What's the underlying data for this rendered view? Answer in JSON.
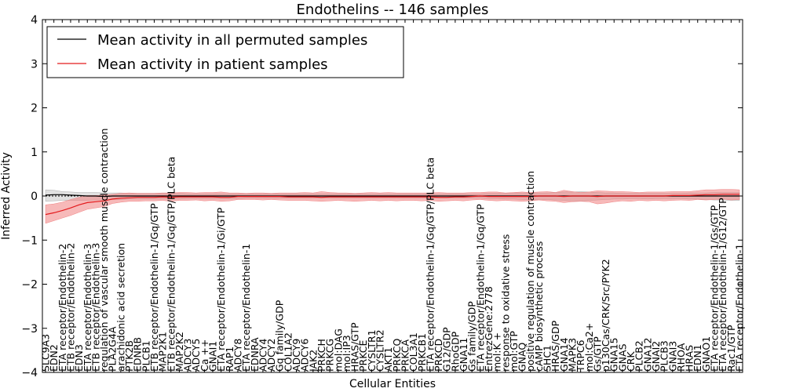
{
  "chart_data": {
    "type": "line",
    "title": "Endothelins -- 146 samples",
    "xlabel": "Cellular Entities",
    "ylabel": "Inferred Activity",
    "ylim": [
      -4,
      4
    ],
    "yticks": [
      -4,
      -3,
      -2,
      -1,
      0,
      1,
      2,
      3,
      4
    ],
    "grid": false,
    "legend_position": "top-left",
    "colors": {
      "permuted_line": "#000000",
      "permuted_band": "#c8c8c8",
      "patient_line": "#e31a1c",
      "patient_band": "#f08080",
      "zero_line": "#000000"
    },
    "categories": [
      "SLC9A3",
      "EDN2",
      "ETA receptor/Endothelin-2",
      "ETB receptor/Endothelin-2",
      "EDN3",
      "ETA receptor/Endothelin-3",
      "ETB receptor/Endothelin-3",
      "regulation of vascular smooth muscle contraction",
      "PLA2G4A",
      "arachidonic acid secretion",
      "PTK2B",
      "EDNRB",
      "PLCB1",
      "ETB receptor/Endothelin-1/Gq/GTP",
      "MAP2K1",
      "ETB receptor/Endothelin-1/Gq/GTP/PLC beta",
      "MAP2K2",
      "ADCY3",
      "ADCY5",
      "Ca ++",
      "GNAI1",
      "ETA receptor/Endothelin-1/Gi/GTP",
      "RAP1",
      "ADCY8",
      "ETA receptor/Endothelin-1",
      "EDNRA",
      "ADCY4",
      "ADCY2",
      "Gq family/GDP",
      "COL1A2",
      "ADCY9",
      "ADCY6",
      "JAK2",
      "PRKCH",
      "PRKCG",
      "mol:DAG",
      "mol:IP3",
      "HRAS/GTP",
      "PRKCE",
      "CYSLTR1",
      "CYSLTR2",
      "AKT1",
      "PRKCQ",
      "PRKCA",
      "COL3A1",
      "PRKCB1",
      "ETA receptor/Endothelin-1/Gq/GTP/PLC beta",
      "PRKCD",
      "G12/GDP",
      "RhoGDP",
      "GNA11",
      "Gs family/GDP",
      "ETA receptor/Endothelin-1/Gq/GTP",
      "EntrezGene:2778",
      "mol:K +",
      "response to oxidative stress",
      "mol:GTP",
      "GNAQ",
      "positive regulation of muscle contraction",
      "cAMP biosynthetic process",
      "SHC1",
      "HRAS/GDP",
      "GNA14",
      "MAPK3",
      "TRPC6",
      "mol:Ca2+",
      "Gs/GTP",
      "p130Cas/CRK/Src/PYK2",
      "GNA15",
      "GNAS",
      "CRK",
      "PLCB2",
      "GNA12",
      "GNAI2",
      "PLCB3",
      "GNAI3",
      "RHOA",
      "HRAS",
      "EDN1",
      "GNAO1",
      "ETA receptor/Endothelin-1/Gs/GTP",
      "ETA receptor/Endothelin-1/G12/GTP",
      "Rac1/GTP",
      "ETA receptor/Endothelin-1"
    ],
    "series": [
      {
        "name": "Mean activity in all permuted samples",
        "values": [
          0.02,
          0.03,
          0.03,
          0.02,
          0.01,
          0.0,
          0.0,
          -0.01,
          0.0,
          0.0,
          0.0,
          0.0,
          0.0,
          0.0,
          0.0,
          0.0,
          0.0,
          0.0,
          0.0,
          0.0,
          0.0,
          0.0,
          0.0,
          0.0,
          0.0,
          0.0,
          0.0,
          0.0,
          0.0,
          0.0,
          0.0,
          0.0,
          0.0,
          0.0,
          0.0,
          0.0,
          0.0,
          0.0,
          0.0,
          0.0,
          0.0,
          0.0,
          0.0,
          0.0,
          0.0,
          0.0,
          0.0,
          0.0,
          0.0,
          0.0,
          0.0,
          0.0,
          0.0,
          0.0,
          0.0,
          0.0,
          0.0,
          0.0,
          0.0,
          0.0,
          0.0,
          0.0,
          0.0,
          0.0,
          0.0,
          0.0,
          0.0,
          0.0,
          0.0,
          0.0,
          0.0,
          0.0,
          0.0,
          0.0,
          0.0,
          0.0,
          0.0,
          0.0,
          0.0,
          0.0,
          0.0,
          0.0,
          0.0,
          0.0
        ],
        "lower": [
          -0.12,
          -0.11,
          -0.1,
          -0.1,
          -0.1,
          -0.1,
          -0.09,
          -0.09,
          -0.08,
          -0.08,
          -0.07,
          -0.07,
          -0.07,
          -0.07,
          -0.07,
          -0.07,
          -0.07,
          -0.06,
          -0.06,
          -0.06,
          -0.06,
          -0.06,
          -0.06,
          -0.06,
          -0.05,
          -0.05,
          -0.05,
          -0.05,
          -0.05,
          -0.05,
          -0.05,
          -0.05,
          -0.05,
          -0.05,
          -0.05,
          -0.05,
          -0.05,
          -0.05,
          -0.05,
          -0.05,
          -0.05,
          -0.05,
          -0.05,
          -0.05,
          -0.05,
          -0.05,
          -0.05,
          -0.05,
          -0.05,
          -0.05,
          -0.05,
          -0.05,
          -0.05,
          -0.06,
          -0.06,
          -0.07,
          -0.07,
          -0.08,
          -0.09,
          -0.08,
          -0.08,
          -0.09,
          -0.1,
          -0.11,
          -0.12,
          -0.1,
          -0.09,
          -0.08,
          -0.07,
          -0.07,
          -0.06,
          -0.06,
          -0.07,
          -0.06,
          -0.06,
          -0.06,
          -0.06,
          -0.07,
          -0.07,
          -0.08,
          -0.09,
          -0.09,
          -0.1,
          -0.1
        ],
        "upper": [
          0.14,
          0.13,
          0.1,
          0.09,
          0.08,
          0.08,
          0.08,
          0.07,
          0.07,
          0.07,
          0.06,
          0.06,
          0.06,
          0.06,
          0.06,
          0.06,
          0.06,
          0.05,
          0.05,
          0.05,
          0.05,
          0.05,
          0.05,
          0.05,
          0.05,
          0.05,
          0.05,
          0.05,
          0.05,
          0.05,
          0.05,
          0.05,
          0.05,
          0.05,
          0.05,
          0.05,
          0.05,
          0.05,
          0.05,
          0.05,
          0.05,
          0.05,
          0.05,
          0.05,
          0.05,
          0.05,
          0.05,
          0.05,
          0.05,
          0.05,
          0.05,
          0.05,
          0.05,
          0.06,
          0.06,
          0.06,
          0.07,
          0.07,
          0.07,
          0.07,
          0.07,
          0.08,
          0.09,
          0.09,
          0.1,
          0.09,
          0.08,
          0.07,
          0.07,
          0.06,
          0.06,
          0.06,
          0.06,
          0.06,
          0.06,
          0.06,
          0.06,
          0.07,
          0.07,
          0.07,
          0.08,
          0.08,
          0.08,
          0.08
        ]
      },
      {
        "name": "Mean activity in patient samples",
        "values": [
          -0.42,
          -0.38,
          -0.33,
          -0.27,
          -0.2,
          -0.15,
          -0.13,
          -0.11,
          -0.07,
          -0.05,
          -0.04,
          -0.03,
          -0.03,
          -0.03,
          -0.02,
          -0.03,
          -0.02,
          -0.02,
          -0.02,
          -0.02,
          -0.02,
          -0.03,
          -0.03,
          -0.01,
          -0.01,
          -0.01,
          -0.01,
          -0.01,
          -0.01,
          -0.02,
          -0.02,
          -0.02,
          -0.02,
          -0.03,
          -0.02,
          -0.02,
          -0.02,
          -0.02,
          -0.02,
          -0.02,
          -0.02,
          -0.02,
          -0.02,
          -0.02,
          -0.02,
          -0.02,
          -0.02,
          -0.03,
          -0.03,
          -0.02,
          -0.02,
          -0.01,
          0.0,
          -0.01,
          -0.01,
          -0.01,
          -0.01,
          -0.01,
          -0.01,
          0.0,
          0.0,
          0.0,
          -0.01,
          0.0,
          0.0,
          0.0,
          -0.01,
          0.0,
          0.0,
          0.0,
          0.0,
          0.0,
          0.0,
          0.0,
          0.0,
          0.01,
          0.01,
          0.01,
          0.02,
          0.03,
          0.03,
          0.04,
          0.04,
          0.04
        ],
        "lower": [
          -0.62,
          -0.56,
          -0.5,
          -0.44,
          -0.37,
          -0.3,
          -0.27,
          -0.24,
          -0.17,
          -0.14,
          -0.12,
          -0.12,
          -0.11,
          -0.11,
          -0.1,
          -0.12,
          -0.1,
          -0.1,
          -0.09,
          -0.11,
          -0.1,
          -0.12,
          -0.11,
          -0.08,
          -0.08,
          -0.08,
          -0.09,
          -0.08,
          -0.09,
          -0.1,
          -0.1,
          -0.1,
          -0.11,
          -0.12,
          -0.11,
          -0.1,
          -0.11,
          -0.12,
          -0.11,
          -0.1,
          -0.11,
          -0.1,
          -0.11,
          -0.1,
          -0.1,
          -0.11,
          -0.1,
          -0.12,
          -0.11,
          -0.1,
          -0.11,
          -0.09,
          -0.08,
          -0.1,
          -0.11,
          -0.1,
          -0.11,
          -0.12,
          -0.11,
          -0.09,
          -0.11,
          -0.12,
          -0.15,
          -0.13,
          -0.12,
          -0.13,
          -0.18,
          -0.16,
          -0.13,
          -0.11,
          -0.12,
          -0.1,
          -0.11,
          -0.1,
          -0.11,
          -0.1,
          -0.09,
          -0.1,
          -0.08,
          -0.09,
          -0.08,
          -0.07,
          -0.09,
          -0.08
        ],
        "upper": [
          -0.2,
          -0.18,
          -0.14,
          -0.08,
          -0.03,
          0.01,
          0.01,
          0.02,
          0.04,
          0.06,
          0.07,
          0.06,
          0.06,
          0.06,
          0.07,
          0.07,
          0.08,
          0.08,
          0.07,
          0.08,
          0.08,
          0.09,
          0.07,
          0.07,
          0.06,
          0.07,
          0.07,
          0.06,
          0.07,
          0.07,
          0.07,
          0.08,
          0.07,
          0.1,
          0.08,
          0.07,
          0.07,
          0.06,
          0.07,
          0.08,
          0.07,
          0.08,
          0.07,
          0.07,
          0.07,
          0.07,
          0.07,
          0.08,
          0.07,
          0.07,
          0.07,
          0.08,
          0.08,
          0.09,
          0.09,
          0.07,
          0.08,
          0.09,
          0.08,
          0.09,
          0.1,
          0.08,
          0.13,
          0.1,
          0.08,
          0.09,
          0.12,
          0.11,
          0.1,
          0.1,
          0.09,
          0.08,
          0.09,
          0.09,
          0.09,
          0.1,
          0.1,
          0.1,
          0.12,
          0.14,
          0.14,
          0.15,
          0.15,
          0.14
        ]
      }
    ]
  }
}
